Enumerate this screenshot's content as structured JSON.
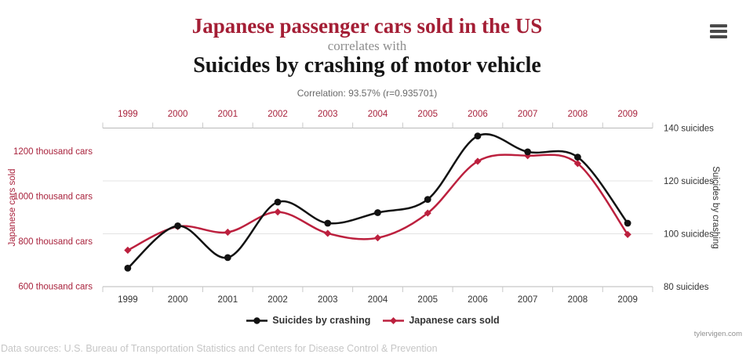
{
  "header": {
    "title_top": "Japanese passenger cars sold in the US",
    "connector": "correlates with",
    "title_bottom": "Suicides by crashing of motor vehicle",
    "correlation_label": "Correlation: 93.57% (r=0.935701)"
  },
  "menu_icon": "hamburger-menu-icon",
  "colors": {
    "title_red": "#a41e35",
    "series_red": "#bc203e",
    "series_black": "#121212",
    "axis_label_red": "#a9233d",
    "axis_label_dark": "#333333",
    "axis_line": "#b9b9b9",
    "grid_line": "#e3e3e3",
    "tick_mark": "#c9c9c9"
  },
  "chart_data": {
    "type": "line",
    "x": [
      "1999",
      "2000",
      "2001",
      "2002",
      "2003",
      "2004",
      "2005",
      "2006",
      "2007",
      "2008",
      "2009"
    ],
    "series": [
      {
        "name": "Suicides by crashing",
        "axis": "right",
        "marker": "circle",
        "color": "#121212",
        "values": [
          87,
          103,
          91,
          112,
          104,
          108,
          113,
          137,
          131,
          129,
          104
        ]
      },
      {
        "name": "Japanese cars sold",
        "axis": "left",
        "marker": "diamond",
        "color": "#bc203e",
        "values": [
          760,
          865,
          840,
          930,
          835,
          815,
          925,
          1155,
          1180,
          1145,
          830
        ]
      }
    ],
    "left_axis": {
      "title": "Japanese cars sold",
      "unit": "thousand cars",
      "range": [
        600,
        1300
      ],
      "ticks": [
        {
          "value": 600,
          "label": "600 thousand cars"
        },
        {
          "value": 800,
          "label": "800 thousand cars"
        },
        {
          "value": 1000,
          "label": "1000 thousand cars"
        },
        {
          "value": 1200,
          "label": "1200 thousand cars"
        }
      ]
    },
    "right_axis": {
      "title": "Suicides by crashing",
      "unit": "suicides",
      "range": [
        80,
        140
      ],
      "ticks": [
        {
          "value": 80,
          "label": "80 suicides"
        },
        {
          "value": 100,
          "label": "100 suicides"
        },
        {
          "value": 120,
          "label": "120 suicides"
        },
        {
          "value": 140,
          "label": "140 suicides"
        }
      ]
    },
    "grid": true,
    "legend_position": "bottom"
  },
  "footer": {
    "watermark": "tylervigen.com",
    "data_sources": "Data sources: U.S. Bureau of Transportation Statistics and Centers for Disease Control & Prevention"
  }
}
